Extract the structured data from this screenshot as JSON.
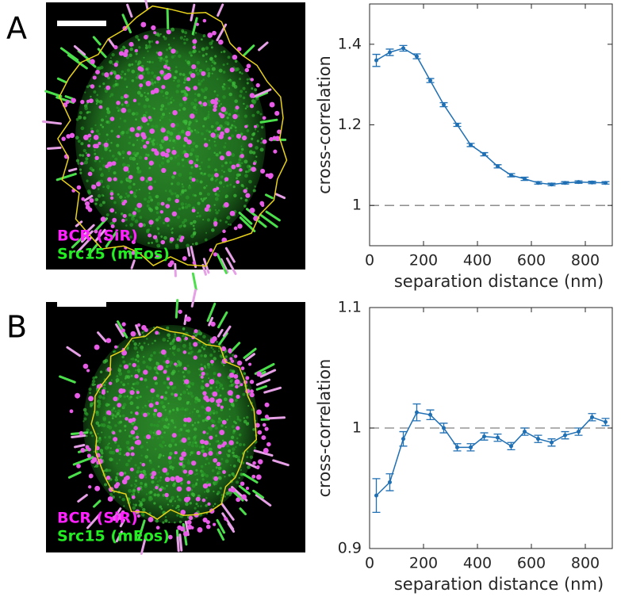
{
  "panels": [
    {
      "label": "A",
      "image_labels": [
        "BCR (SiR)",
        "Src15 (mEos)"
      ]
    },
    {
      "label": "B",
      "image_labels": [
        "BCR (SiR)",
        "Src15 (mEos)"
      ]
    }
  ],
  "chart_data": [
    {
      "type": "line",
      "xlabel": "separation distance (nm)",
      "ylabel": "cross-correlation",
      "x": [
        25,
        75,
        125,
        175,
        225,
        275,
        325,
        375,
        425,
        475,
        525,
        575,
        625,
        675,
        725,
        775,
        825,
        875
      ],
      "values": [
        1.36,
        1.38,
        1.39,
        1.37,
        1.31,
        1.25,
        1.2,
        1.15,
        1.127,
        1.097,
        1.075,
        1.066,
        1.056,
        1.052,
        1.056,
        1.058,
        1.057,
        1.056
      ],
      "errors": [
        0.015,
        0.008,
        0.007,
        0.006,
        0.005,
        0.005,
        0.004,
        0.004,
        0.004,
        0.004,
        0.004,
        0.004,
        0.003,
        0.003,
        0.003,
        0.003,
        0.003,
        0.003
      ],
      "color": "#1f6fb4",
      "reference_line": 1,
      "xlim": [
        0,
        900
      ],
      "xticks": [
        0,
        200,
        400,
        600,
        800
      ],
      "ylim": [
        0.9,
        1.5
      ],
      "yticks": [
        1,
        1.2,
        1.4
      ]
    },
    {
      "type": "line",
      "xlabel": "separation distance (nm)",
      "ylabel": "cross-correlation",
      "x": [
        25,
        75,
        125,
        175,
        225,
        275,
        325,
        375,
        425,
        475,
        525,
        575,
        625,
        675,
        725,
        775,
        825,
        875
      ],
      "values": [
        0.944,
        0.955,
        0.991,
        1.013,
        1.011,
        1.0,
        0.984,
        0.984,
        0.993,
        0.992,
        0.985,
        0.997,
        0.991,
        0.988,
        0.994,
        0.997,
        1.009,
        1.005
      ],
      "errors": [
        0.014,
        0.007,
        0.006,
        0.007,
        0.004,
        0.004,
        0.003,
        0.003,
        0.003,
        0.003,
        0.003,
        0.003,
        0.003,
        0.003,
        0.003,
        0.003,
        0.003,
        0.003
      ],
      "color": "#1f6fb4",
      "reference_line": 1,
      "xlim": [
        0,
        900
      ],
      "xticks": [
        0,
        200,
        400,
        600,
        800
      ],
      "ylim": [
        0.9,
        1.1
      ],
      "yticks": [
        0.9,
        1,
        1.1
      ]
    }
  ]
}
